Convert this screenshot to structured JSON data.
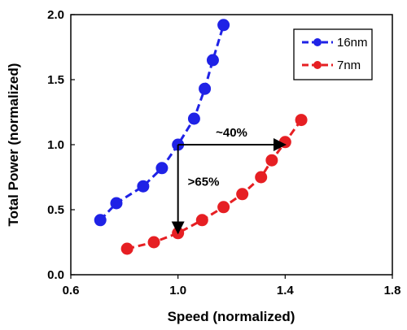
{
  "chart_data": {
    "type": "line",
    "xlabel": "Speed (normalized)",
    "ylabel": "Total Power (normalized)",
    "xlim": [
      0.6,
      1.8
    ],
    "ylim": [
      0.0,
      2.0
    ],
    "xticks": [
      "0.6",
      "1.0",
      "1.4",
      "1.8"
    ],
    "yticks": [
      "0.0",
      "0.5",
      "1.0",
      "1.5",
      "2.0"
    ],
    "xtick_values": [
      0.6,
      1.0,
      1.4,
      1.8
    ],
    "ytick_values": [
      0.0,
      0.5,
      1.0,
      1.5,
      2.0
    ],
    "grid": false,
    "legend_position": "top-right",
    "series": [
      {
        "name": "16nm",
        "color": "#1f22e6",
        "x": [
          0.71,
          0.77,
          0.87,
          0.94,
          1.0,
          1.06,
          1.1,
          1.13,
          1.17
        ],
        "y": [
          0.42,
          0.55,
          0.68,
          0.82,
          1.0,
          1.2,
          1.43,
          1.65,
          1.92
        ]
      },
      {
        "name": "7nm",
        "color": "#e61f23",
        "x": [
          0.81,
          0.91,
          1.0,
          1.09,
          1.17,
          1.24,
          1.31,
          1.35,
          1.4,
          1.46
        ],
        "y": [
          0.2,
          0.25,
          0.32,
          0.42,
          0.52,
          0.62,
          0.75,
          0.88,
          1.02,
          1.19
        ]
      }
    ],
    "annotations": [
      {
        "text": "~40%",
        "type": "horizontal-arrow",
        "from": [
          1.0,
          1.0
        ],
        "to": [
          1.4,
          1.0
        ]
      },
      {
        "text": ">65%",
        "type": "vertical-arrow",
        "from": [
          1.0,
          1.0
        ],
        "to": [
          1.0,
          0.32
        ]
      }
    ]
  }
}
